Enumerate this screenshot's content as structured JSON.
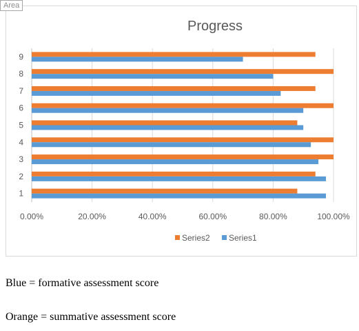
{
  "area_label": "Area",
  "chart_data": {
    "type": "bar",
    "orientation": "horizontal",
    "title": "Progress",
    "categories": [
      "1",
      "2",
      "3",
      "4",
      "5",
      "6",
      "7",
      "8",
      "9"
    ],
    "series": [
      {
        "name": "Series1",
        "color": "#5b9bd5",
        "values": [
          0.975,
          0.975,
          0.95,
          0.925,
          0.9,
          0.9,
          0.825,
          0.8,
          0.7
        ]
      },
      {
        "name": "Series2",
        "color": "#ed7d31",
        "values": [
          0.88,
          0.94,
          1.0,
          1.0,
          0.88,
          1.0,
          0.94,
          1.0,
          0.94
        ]
      }
    ],
    "xlim": [
      0,
      1.0
    ],
    "x_ticks": [
      "0.00%",
      "20.00%",
      "40.00%",
      "60.00%",
      "80.00%",
      "100.00%"
    ],
    "grid": true,
    "legend_position": "bottom"
  },
  "notes": {
    "blue": "Blue = formative assessment score",
    "orange": "Orange = summative assessment score"
  }
}
